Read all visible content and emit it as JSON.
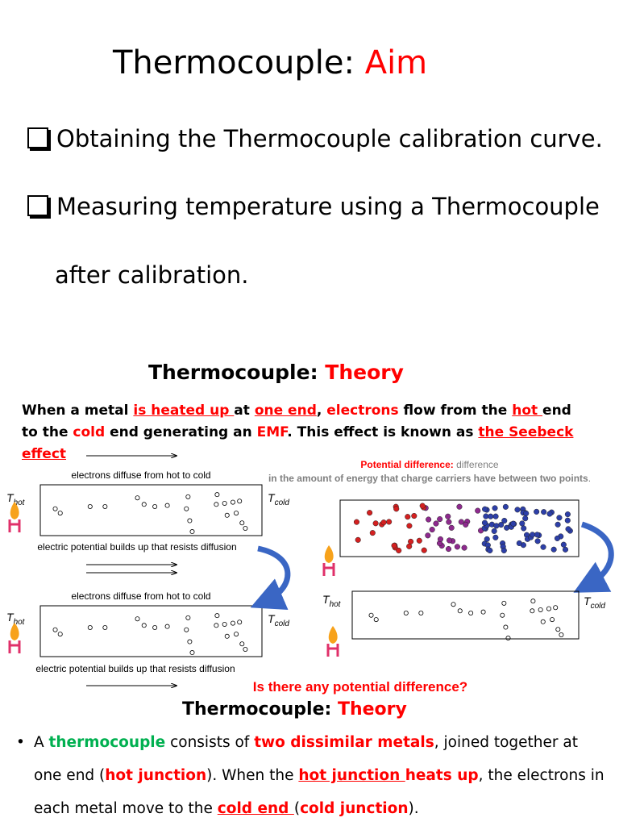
{
  "aim": {
    "title": [
      "Thermocouple: ",
      "Aim"
    ],
    "items": [
      "Obtaining the Thermocouple calibration curve.",
      "Measuring temperature using a Thermocouple",
      "after calibration."
    ]
  },
  "theory": {
    "title": [
      "Thermocouple: ",
      "Theory"
    ],
    "paragraph": [
      "When a metal ",
      "is heated up ",
      "at ",
      "one end",
      ", ",
      "electrons",
      " flow from the ",
      "hot ",
      "end to the ",
      "cold",
      " end generating an ",
      "EMF",
      ". This effect is known as ",
      "the Seebeck effect"
    ]
  },
  "diagram": {
    "left_panels": [
      {
        "top": "electrons diffuse from hot to cold",
        "bottom": "electric potential builds up that resists diffusion",
        "t_hot": [
          "T",
          "hot"
        ],
        "t_cold": [
          "T",
          "cold"
        ]
      },
      {
        "top": "electrons diffuse from hot to cold",
        "bottom": "electric potential builds up that resists diffusion",
        "t_hot": [
          "T",
          "hot"
        ],
        "t_cold": [
          "T",
          "cold"
        ]
      }
    ],
    "potential_note": [
      "Potential difference:",
      " difference",
      " in the amount of energy that charge carriers have between two points",
      "."
    ],
    "right_panel": {
      "t_hot": [
        "T",
        "hot"
      ],
      "t_cold": [
        "T",
        "cold"
      ]
    },
    "question": "Is there any potential difference?"
  },
  "theory2": {
    "title": [
      "Thermocouple: ",
      "Theory"
    ],
    "paragraph": [
      "A ",
      "thermocouple",
      " consists of ",
      "two dissimilar metals",
      ", joined together at one end (",
      "hot junction",
      "). When the ",
      "hot junction ",
      "heats up",
      ", the electrons in each metal move to the ",
      "cold end ",
      "(",
      "cold junction",
      ")."
    ]
  }
}
